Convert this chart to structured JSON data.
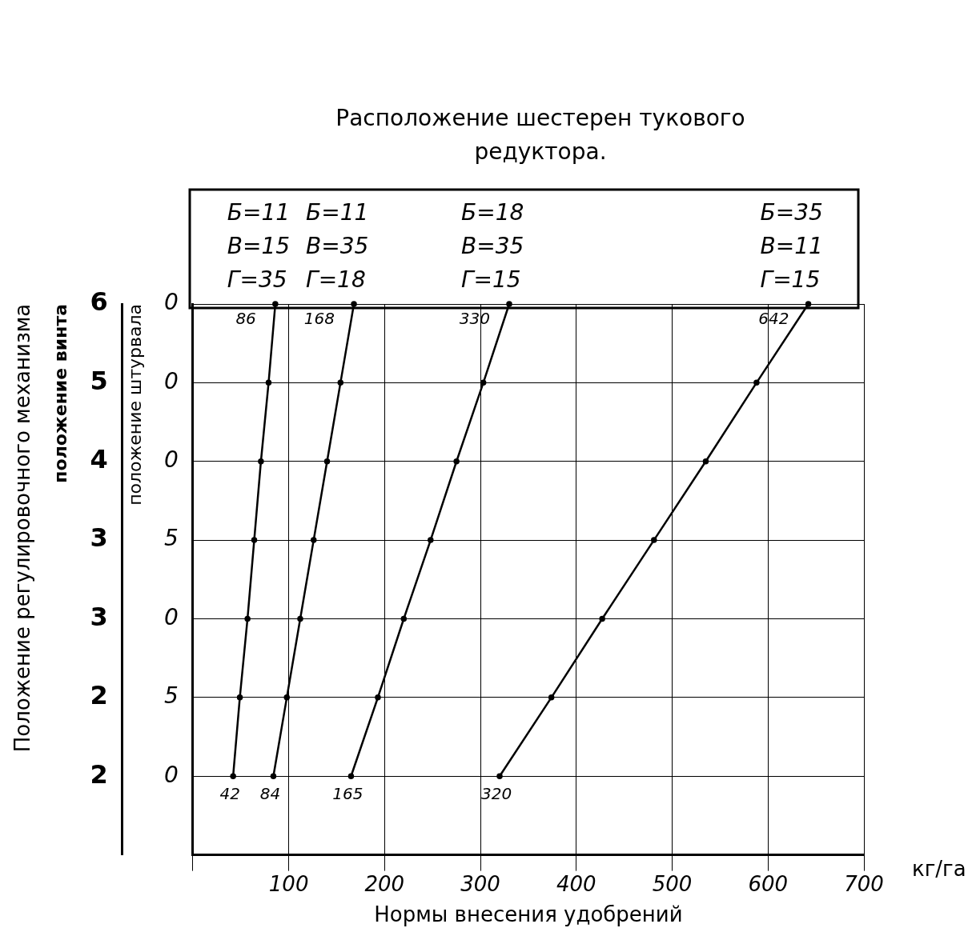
{
  "chart_data": {
    "type": "line",
    "orientation": "horizontal",
    "title": "Расположение шестерен тукового редуктора.",
    "xlabel": "Нормы внесения удобрений",
    "ylabel": "положение винта",
    "y2label": "положение штурвала",
    "annotations": [
      "Положение регулировочного механизма",
      "кг/га"
    ],
    "categories": [
      "6",
      "5",
      "4",
      "3",
      "3",
      "2",
      "2",
      null
    ],
    "y2_categories": [
      "0",
      "0",
      "0",
      "5",
      "0",
      "5",
      "0",
      null
    ],
    "series": [
      {
        "name": "Б=11\nВ=15\nГ=35",
        "color": "#000000",
        "values": [
          86,
          79,
          71,
          64,
          57,
          49,
          42,
          null
        ],
        "value_labels": [
          "86",
          null,
          null,
          null,
          null,
          null,
          "42",
          null
        ]
      },
      {
        "name": "Б=11\nВ=35\nГ=18",
        "color": "#000000",
        "values": [
          168,
          154,
          140,
          126,
          112,
          98,
          84,
          null
        ],
        "value_labels": [
          "168",
          null,
          null,
          null,
          null,
          null,
          "84",
          null
        ]
      },
      {
        "name": "Б=18\nВ=35\nГ=15",
        "color": "#000000",
        "values": [
          330,
          303,
          275,
          248,
          220,
          193,
          165,
          null
        ],
        "value_labels": [
          "330",
          null,
          null,
          null,
          null,
          null,
          "165",
          null
        ]
      },
      {
        "name": "Б=35\nВ=11\nГ=15",
        "color": "#000000",
        "values": [
          642,
          588,
          535,
          481,
          427,
          374,
          320,
          null
        ],
        "value_labels": [
          "642",
          null,
          null,
          null,
          null,
          null,
          "320",
          null
        ]
      }
    ],
    "xlim": [
      0,
      700
    ],
    "xticks": [
      {
        "value": 0,
        "label": null
      },
      100,
      200,
      300,
      400,
      500,
      600,
      700
    ],
    "grid": true,
    "marker": "circle",
    "line_style": "solid",
    "legend": false
  }
}
